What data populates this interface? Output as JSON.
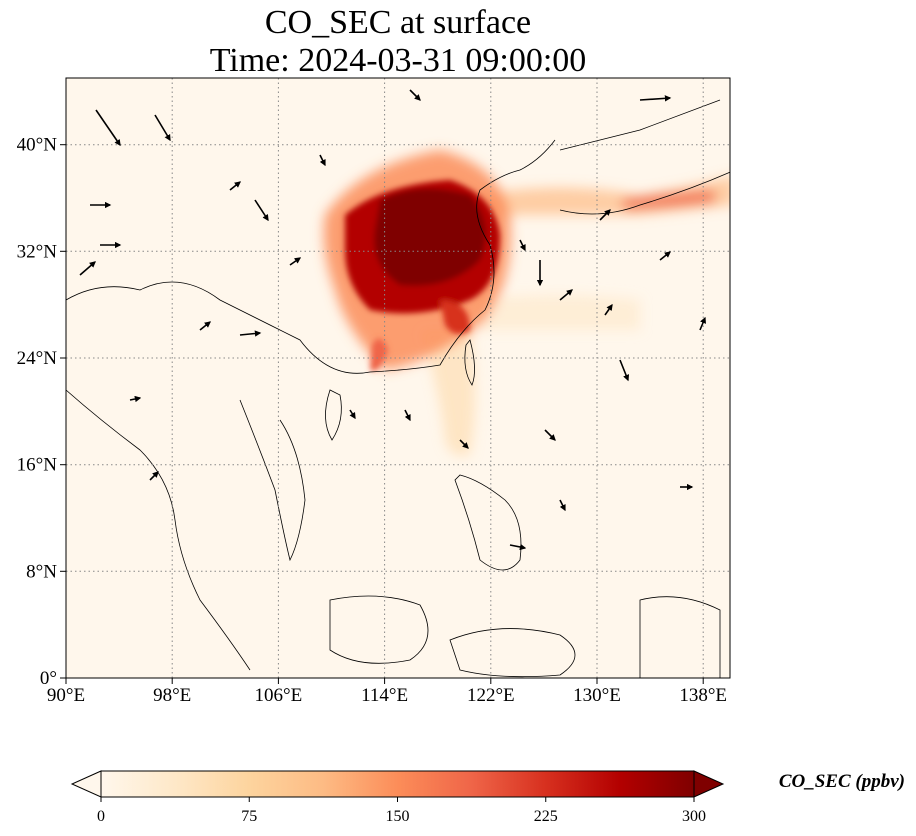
{
  "title_line1": "CO_SEC at surface",
  "title_line2": "Time: 2024-03-31 09:00:00",
  "map": {
    "projection": "PlateCarree",
    "lon_range": [
      90,
      140
    ],
    "lat_range": [
      0,
      45
    ],
    "lon_ticks": [
      {
        "value": 90,
        "label": "90°E"
      },
      {
        "value": 98,
        "label": "98°E"
      },
      {
        "value": 106,
        "label": "106°E"
      },
      {
        "value": 114,
        "label": "114°E"
      },
      {
        "value": 122,
        "label": "122°E"
      },
      {
        "value": 130,
        "label": "130°E"
      },
      {
        "value": 138,
        "label": "138°E"
      }
    ],
    "lat_ticks": [
      {
        "value": 0,
        "label": "0°"
      },
      {
        "value": 8,
        "label": "8°N"
      },
      {
        "value": 16,
        "label": "16°N"
      },
      {
        "value": 24,
        "label": "24°N"
      },
      {
        "value": 32,
        "label": "32°N"
      },
      {
        "value": 40,
        "label": "40°N"
      }
    ],
    "gridlines": "dotted gray",
    "field_colormap": "OrRd",
    "overlay": "wind vectors (black arrows)"
  },
  "colorbar": {
    "label": "CO_SEC (ppbv)",
    "min": 0,
    "max": 300,
    "ticks": [
      {
        "value": 0,
        "label": "0"
      },
      {
        "value": 75,
        "label": "75"
      },
      {
        "value": 150,
        "label": "150"
      },
      {
        "value": 225,
        "label": "225"
      },
      {
        "value": 300,
        "label": "300"
      }
    ],
    "extend": "both",
    "colors": [
      "#fff7ec",
      "#fee8c8",
      "#fdd49e",
      "#fdbb84",
      "#fc8d59",
      "#ef6548",
      "#d7301f",
      "#b30000",
      "#7f0000"
    ]
  }
}
